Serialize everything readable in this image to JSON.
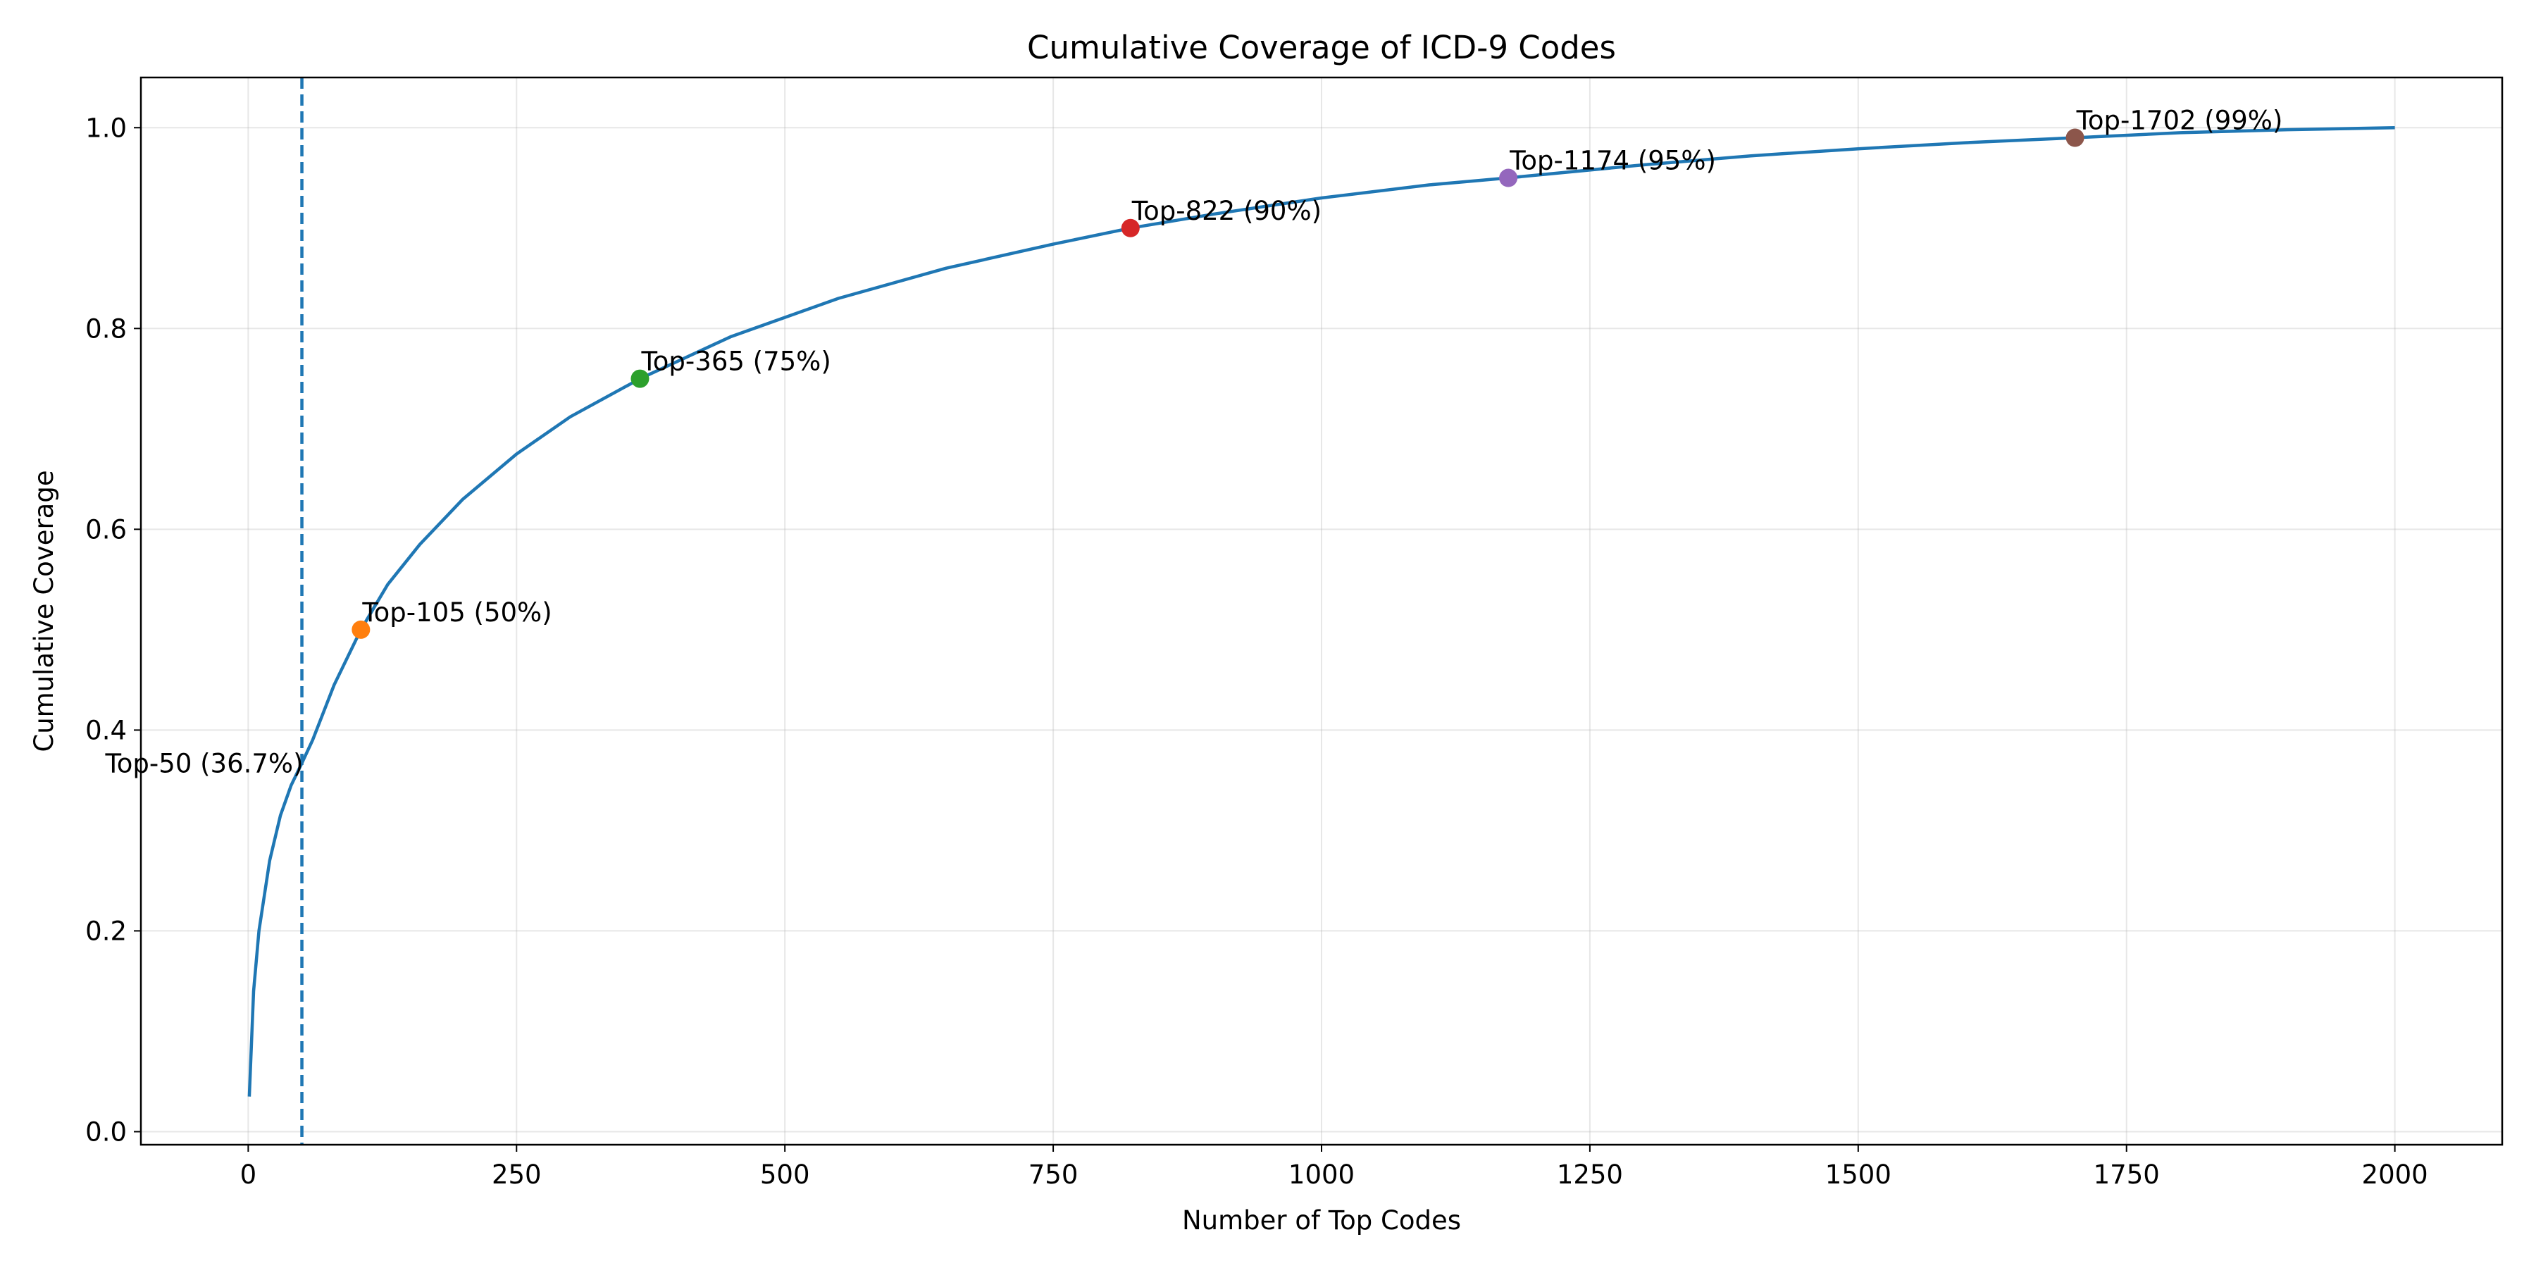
{
  "chart_data": {
    "type": "line",
    "title": "Cumulative Coverage of ICD-9 Codes",
    "xlabel": "Number of Top Codes",
    "ylabel": "Cumulative Coverage",
    "xlim": [
      -100,
      2100
    ],
    "ylim": [
      -0.013,
      1.05
    ],
    "x_ticks": [
      0,
      250,
      500,
      750,
      1000,
      1250,
      1500,
      1750,
      2000
    ],
    "y_ticks": [
      0.0,
      0.2,
      0.4,
      0.6,
      0.8,
      1.0
    ],
    "x_tick_labels": [
      "0",
      "250",
      "500",
      "750",
      "1000",
      "1250",
      "1500",
      "1750",
      "2000"
    ],
    "y_tick_labels": [
      "0.0",
      "0.2",
      "0.4",
      "0.6",
      "0.8",
      "1.0"
    ],
    "grid": true,
    "series": [
      {
        "color": "#1f77b4",
        "x": [
          1,
          5,
          10,
          20,
          30,
          40,
          50,
          60,
          80,
          105,
          130,
          160,
          200,
          250,
          300,
          365,
          450,
          550,
          650,
          750,
          822,
          900,
          1000,
          1100,
          1174,
          1300,
          1400,
          1500,
          1600,
          1702,
          1800,
          1900,
          2000
        ],
        "y": [
          0.035,
          0.14,
          0.2,
          0.27,
          0.315,
          0.345,
          0.367,
          0.39,
          0.445,
          0.5,
          0.545,
          0.585,
          0.63,
          0.675,
          0.712,
          0.75,
          0.792,
          0.83,
          0.86,
          0.884,
          0.9,
          0.914,
          0.93,
          0.943,
          0.95,
          0.963,
          0.972,
          0.979,
          0.985,
          0.99,
          0.995,
          0.998,
          1.0
        ]
      }
    ],
    "vline": {
      "x": 50,
      "color": "#1f77b4",
      "style": "dashed"
    },
    "markers": [
      {
        "x": 105,
        "y": 0.5,
        "label": "Top-105 (50%)",
        "color": "#ff7f0e"
      },
      {
        "x": 365,
        "y": 0.75,
        "label": "Top-365 (75%)",
        "color": "#2ca02c"
      },
      {
        "x": 822,
        "y": 0.9,
        "label": "Top-822 (90%)",
        "color": "#d62728"
      },
      {
        "x": 1174,
        "y": 0.95,
        "label": "Top-1174 (95%)",
        "color": "#9467bd"
      },
      {
        "x": 1702,
        "y": 0.99,
        "label": "Top-1702 (99%)",
        "color": "#8c564b"
      }
    ],
    "annotations": [
      {
        "x": 50,
        "y": 0.367,
        "text": "Top-50 (36.7%)"
      }
    ]
  }
}
